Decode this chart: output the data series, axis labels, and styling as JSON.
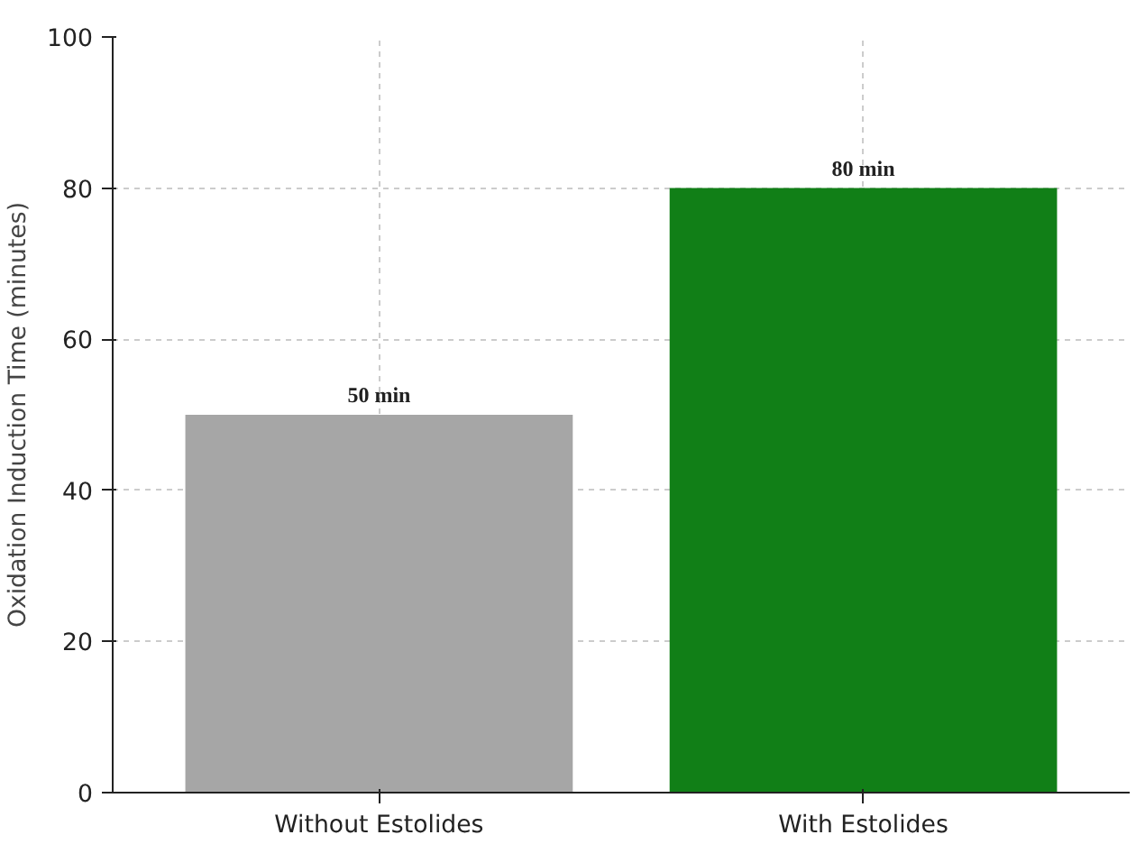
{
  "chart_data": {
    "type": "bar",
    "ylabel": "Oxidation Induction Time (minutes)",
    "categories": [
      "Without Estolides",
      "With Estolides"
    ],
    "values": [
      50,
      80
    ],
    "colors": [
      "#a6a6a6",
      "#117f17"
    ],
    "value_labels": [
      "50 min",
      "80 min"
    ],
    "ylim": [
      0,
      100
    ],
    "yticks": [
      0,
      20,
      40,
      60,
      80,
      100
    ],
    "grid": true
  }
}
